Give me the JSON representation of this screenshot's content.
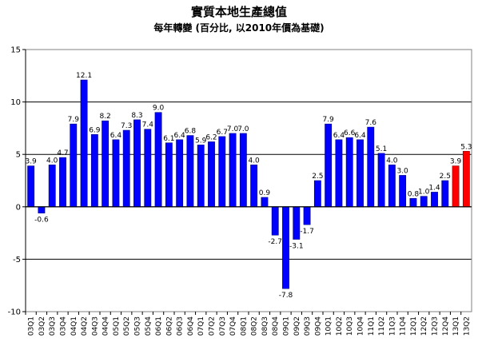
{
  "chart_data": {
    "type": "bar",
    "title": "實質本地生產總值",
    "subtitle": "每年轉變 (百分比, 以2010年價為基礎)",
    "xlabel": "",
    "ylabel": "",
    "ylim": [
      -10,
      15
    ],
    "yticks": [
      -10,
      -5,
      0,
      5,
      10,
      15
    ],
    "grid": true,
    "legend": "none",
    "categories": [
      "03Q1",
      "03Q2",
      "03Q3",
      "03Q4",
      "04Q1",
      "04Q2",
      "04Q3",
      "04Q4",
      "05Q1",
      "05Q2",
      "05Q3",
      "05Q4",
      "06Q1",
      "06Q2",
      "06Q3",
      "06Q4",
      "07Q1",
      "07Q2",
      "07Q3",
      "07Q4",
      "08Q1",
      "08Q2",
      "08Q3",
      "08Q4",
      "09Q1",
      "09Q2",
      "09Q3",
      "09Q4",
      "10Q1",
      "10Q2",
      "10Q3",
      "10Q4",
      "11Q1",
      "11Q2",
      "11Q3",
      "11Q4",
      "12Q1",
      "12Q2",
      "12Q3",
      "12Q4",
      "13Q1",
      "13Q2"
    ],
    "values": [
      3.9,
      -0.6,
      4.0,
      4.7,
      7.9,
      12.1,
      6.9,
      8.2,
      6.4,
      7.3,
      8.3,
      7.4,
      9.0,
      6.1,
      6.4,
      6.8,
      5.9,
      6.2,
      6.7,
      7.0,
      7.0,
      4.0,
      0.9,
      -2.7,
      -7.8,
      -3.1,
      -1.7,
      2.5,
      7.9,
      6.4,
      6.6,
      6.4,
      7.6,
      5.1,
      4.0,
      3.0,
      0.8,
      1.0,
      1.4,
      2.5,
      3.9,
      5.3
    ],
    "data_labels": [
      "3.9",
      "-0.6",
      "4.0",
      "4.7",
      "7.9",
      "12.1",
      "6.9",
      "8.2",
      "6.4",
      "7.3",
      "8.3",
      "7.4",
      "9.0",
      "6.1",
      "6.4",
      "6.8",
      "5.9",
      "6.2",
      "6.7",
      "7.0",
      "7.0",
      "4.0",
      "0.9",
      "-2.7",
      "-7.8",
      "-3.1",
      "-1.7",
      "2.5",
      "7.9",
      "6.4",
      "6.6",
      "6.4",
      "7.6",
      "5.1",
      "4.0",
      "3.0",
      "0.8",
      "1.0",
      "1.4",
      "2.5",
      "3.9",
      "5.3"
    ],
    "highlight_indices": [
      40,
      41
    ],
    "colors": {
      "bar": "#0000ff",
      "highlight": "#ff0000",
      "bar_edge": "#000080",
      "grid": "#000000"
    }
  }
}
